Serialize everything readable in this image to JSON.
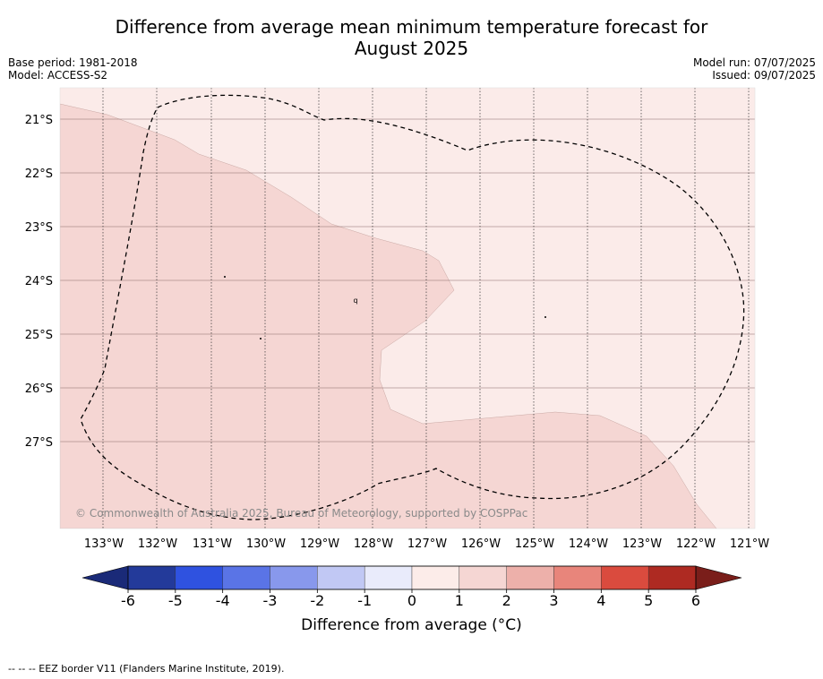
{
  "header": {
    "title_line1": "Difference from average mean minimum temperature forecast for",
    "title_line2": "August 2025",
    "base_period": "Base period: 1981-2018",
    "model": "Model: ACCESS-S2",
    "model_run": "Model run: 07/07/2025",
    "issued": "Issued: 09/07/2025"
  },
  "map": {
    "lat_labels": [
      "21°S",
      "22°S",
      "23°S",
      "24°S",
      "25°S",
      "26°S",
      "27°S"
    ],
    "lon_labels": [
      "133°W",
      "132°W",
      "131°W",
      "130°W",
      "129°W",
      "128°W",
      "127°W",
      "126°W",
      "125°W",
      "124°W",
      "123°W",
      "122°W",
      "121°W"
    ],
    "copyright": "© Commonwealth of Australia 2025, Bureau of Meteorology, supported by COSPPac",
    "colors": {
      "band_0_1": "#fbebe9",
      "band_1_2": "#f5d6d3",
      "grid": "#8a6a6a"
    }
  },
  "colorbar": {
    "ticks": [
      "-6",
      "-5",
      "-4",
      "-3",
      "-2",
      "-1",
      "0",
      "1",
      "2",
      "3",
      "4",
      "5",
      "6"
    ],
    "colors": [
      "#233a9a",
      "#2f52e0",
      "#5a74e6",
      "#8898ec",
      "#c1c8f4",
      "#e9ebfb",
      "#fcece9",
      "#f5d6d3",
      "#edb0aa",
      "#e8857b",
      "#da4b3e",
      "#ae2a22"
    ],
    "low_extend_color": "#1a2a78",
    "high_extend_color": "#7a1e1a",
    "label": "Difference from average (°C)"
  },
  "footer": {
    "legend_text": "--  --  -- EEZ border V11 (Flanders Marine Institute, 2019)."
  }
}
